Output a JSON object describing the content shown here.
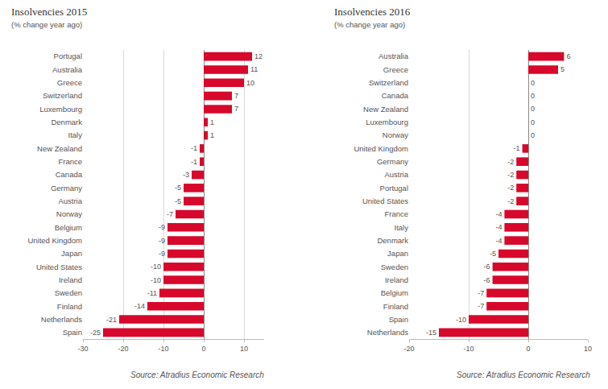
{
  "chart_data": [
    {
      "type": "bar",
      "orientation": "horizontal",
      "title": "Insolvencies 2015",
      "subtitle": "(% change year ago)",
      "annotations": [
        "Source: Atradius Economic Research"
      ],
      "categories": [
        "Portugal",
        "Australia",
        "Greece",
        "Switzerland",
        "Luxembourg",
        "Denmark",
        "Italy",
        "New Zealand",
        "France",
        "Canada",
        "Germany",
        "Austria",
        "Norway",
        "Belgium",
        "United Kingdom",
        "Japan",
        "United States",
        "Ireland",
        "Sweden",
        "Finland",
        "Netherlands",
        "Spain"
      ],
      "values": [
        12,
        11,
        10,
        7,
        7,
        1,
        1,
        -1,
        -1,
        -3,
        -5,
        -5,
        -7,
        -9,
        -9,
        -9,
        -10,
        -10,
        -11,
        -14,
        -21,
        -25
      ],
      "color": "#d7082b",
      "xlim": [
        -30,
        15
      ],
      "xticks": [
        -30,
        -20,
        -10,
        0,
        10
      ],
      "grid": true,
      "data_labels": true
    },
    {
      "type": "bar",
      "orientation": "horizontal",
      "title": "Insolvencies 2016",
      "subtitle": "(% change year ago)",
      "annotations": [
        "Source: Atradius Economic Research"
      ],
      "categories": [
        "Australia",
        "Greece",
        "Switzerland",
        "Canada",
        "New Zealand",
        "Luxembourg",
        "Norway",
        "United Kingdom",
        "Germany",
        "Austria",
        "Portugal",
        "United States",
        "France",
        "Italy",
        "Denmark",
        "Japan",
        "Sweden",
        "Ireland",
        "Belgium",
        "Finland",
        "Spain",
        "Netherlands"
      ],
      "values": [
        6,
        5,
        0,
        0,
        0,
        0,
        0,
        -1,
        -2,
        -2,
        -2,
        -2,
        -4,
        -4,
        -4,
        -5,
        -6,
        -6,
        -7,
        -7,
        -10,
        -15
      ],
      "color": "#d7082b",
      "xlim": [
        -20,
        10
      ],
      "xticks": [
        -20,
        -10,
        0,
        10
      ],
      "grid": true,
      "data_labels": true
    }
  ]
}
